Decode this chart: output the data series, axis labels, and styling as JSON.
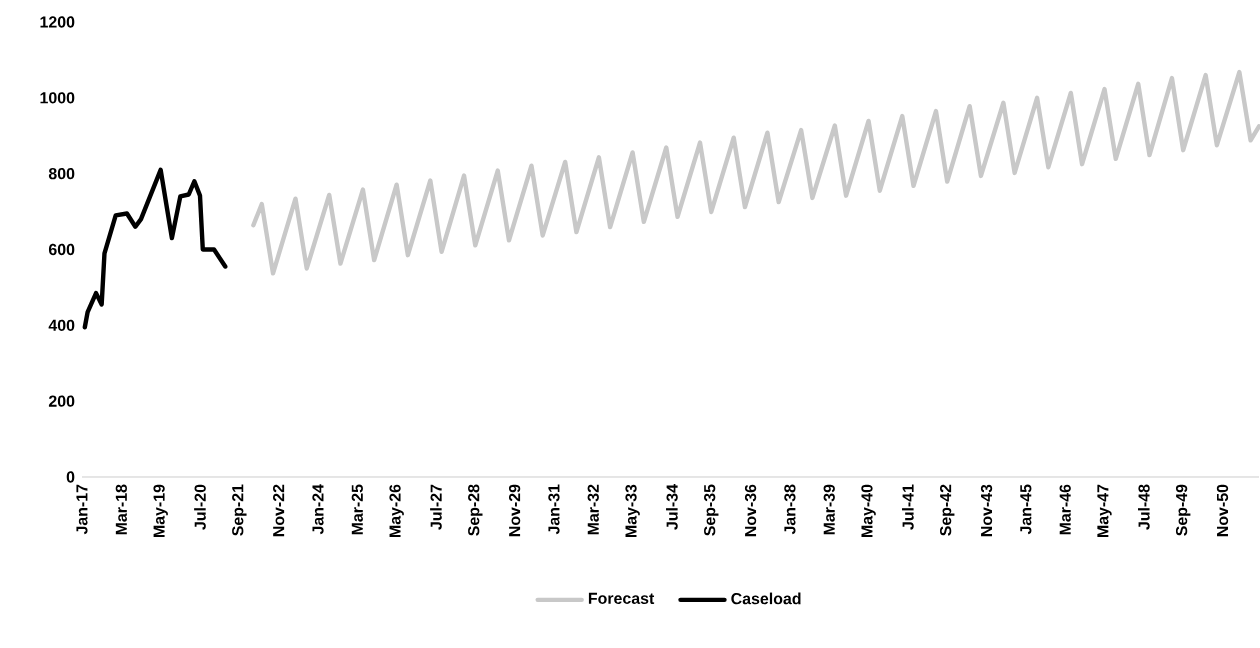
{
  "chart_data": {
    "type": "line",
    "xlim": [
      "2017-01",
      "2051-12"
    ],
    "xticks": [
      {
        "value": "2017-01",
        "label": "Jan-17"
      },
      {
        "value": "2018-03",
        "label": "Mar-18"
      },
      {
        "value": "2019-05",
        "label": "May-19"
      },
      {
        "value": "2020-07",
        "label": "Jul-20"
      },
      {
        "value": "2021-09",
        "label": "Sep-21"
      },
      {
        "value": "2022-11",
        "label": "Nov-22"
      },
      {
        "value": "2024-01",
        "label": "Jan-24"
      },
      {
        "value": "2025-03",
        "label": "Mar-25"
      },
      {
        "value": "2026-05",
        "label": "May-26"
      },
      {
        "value": "2027-07",
        "label": "Jul-27"
      },
      {
        "value": "2028-09",
        "label": "Sep-28"
      },
      {
        "value": "2029-11",
        "label": "Nov-29"
      },
      {
        "value": "2031-01",
        "label": "Jan-31"
      },
      {
        "value": "2032-03",
        "label": "Mar-32"
      },
      {
        "value": "2033-05",
        "label": "May-33"
      },
      {
        "value": "2034-07",
        "label": "Jul-34"
      },
      {
        "value": "2035-09",
        "label": "Sep-35"
      },
      {
        "value": "2036-11",
        "label": "Nov-36"
      },
      {
        "value": "2038-01",
        "label": "Jan-38"
      },
      {
        "value": "2039-03",
        "label": "Mar-39"
      },
      {
        "value": "2040-05",
        "label": "May-40"
      },
      {
        "value": "2041-07",
        "label": "Jul-41"
      },
      {
        "value": "2042-09",
        "label": "Sep-42"
      },
      {
        "value": "2043-11",
        "label": "Nov-43"
      },
      {
        "value": "2045-01",
        "label": "Jan-45"
      },
      {
        "value": "2046-03",
        "label": "Mar-46"
      },
      {
        "value": "2047-05",
        "label": "May-47"
      },
      {
        "value": "2048-07",
        "label": "Jul-48"
      },
      {
        "value": "2049-09",
        "label": "Sep-49"
      },
      {
        "value": "2050-11",
        "label": "Nov-50"
      }
    ],
    "ylim": [
      0,
      1200
    ],
    "yticks": [
      0,
      200,
      400,
      600,
      800,
      1000,
      1200
    ],
    "legend": "bottom",
    "series": [
      {
        "name": "Forecast",
        "color": "#c8c8c8",
        "x": [
          "2022-02",
          "2022-05",
          "2022-09",
          "2023-05",
          "2023-09",
          "2024-05",
          "2024-09",
          "2025-05",
          "2025-09",
          "2026-05",
          "2026-09",
          "2027-05",
          "2027-09",
          "2028-05",
          "2028-09",
          "2029-05",
          "2029-09",
          "2030-05",
          "2030-09",
          "2031-05",
          "2031-09",
          "2032-05",
          "2032-09",
          "2033-05",
          "2033-09",
          "2034-05",
          "2034-09",
          "2035-05",
          "2035-09",
          "2036-05",
          "2036-09",
          "2037-05",
          "2037-09",
          "2038-05",
          "2038-09",
          "2039-05",
          "2039-09",
          "2040-05",
          "2040-09",
          "2041-05",
          "2041-09",
          "2042-05",
          "2042-09",
          "2043-05",
          "2043-09",
          "2044-05",
          "2044-09",
          "2045-05",
          "2045-09",
          "2046-05",
          "2046-09",
          "2047-05",
          "2047-09",
          "2048-05",
          "2048-09",
          "2049-05",
          "2049-09",
          "2050-05",
          "2050-09",
          "2051-05",
          "2051-09",
          "2051-12"
        ],
        "values": [
          664,
          720,
          537,
          734,
          550,
          744,
          563,
          758,
          572,
          771,
          585,
          782,
          594,
          795,
          611,
          808,
          624,
          821,
          637,
          831,
          646,
          843,
          659,
          856,
          673,
          869,
          686,
          882,
          699,
          895,
          712,
          908,
          725,
          915,
          736,
          927,
          742,
          939,
          755,
          952,
          768,
          965,
          779,
          978,
          794,
          987,
          802,
          1000,
          817,
          1013,
          825,
          1023,
          839,
          1037,
          849,
          1052,
          862,
          1060,
          875,
          1068,
          888,
          925
        ]
      },
      {
        "name": "Caseload",
        "color": "#000000",
        "x": [
          "2017-02",
          "2017-03",
          "2017-06",
          "2017-08",
          "2017-09",
          "2018-01",
          "2018-05",
          "2018-08",
          "2018-10",
          "2019-05",
          "2019-09",
          "2019-12",
          "2020-03",
          "2020-05",
          "2020-07",
          "2020-08",
          "2020-12",
          "2021-04"
        ],
        "values": [
          395,
          435,
          485,
          455,
          590,
          690,
          695,
          660,
          680,
          810,
          630,
          740,
          745,
          780,
          742,
          600,
          600,
          555
        ]
      }
    ]
  }
}
